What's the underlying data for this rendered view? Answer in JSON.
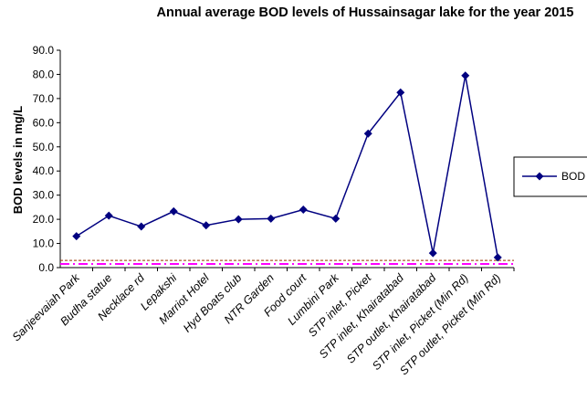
{
  "chart_data": {
    "type": "line",
    "title": "Annual average BOD levels of Hussainsagar lake for the year 2015",
    "y_label": "BOD levels in mg/L",
    "categories": [
      "Sanjeevaiah Park",
      "Budha statue",
      "Necklace rd",
      "Lepakshi",
      "Marriot Hotel",
      "Hyd Boats club",
      "NTR Garden",
      "Food court",
      "Lumbini Park",
      "STP inlet, Picket",
      "STP inlet, Khairatabad",
      "STP outlet, Khairatabad",
      "STP inlet, Picket (Min Rd)",
      "STP outlet, Picket (Min Rd)"
    ],
    "series": [
      {
        "name": "BOD",
        "color": "#000080",
        "values": [
          13,
          21.5,
          17,
          23.3,
          17.5,
          20,
          20.3,
          24,
          20.3,
          55.5,
          72.5,
          6,
          79.5,
          4.2
        ]
      }
    ],
    "reference_lines": [
      {
        "value": 3,
        "color": "#993300"
      },
      {
        "value": 1.5,
        "color": "#ff00ff"
      }
    ],
    "ylim": [
      0,
      90
    ],
    "yticks": [
      {
        "value": 0,
        "label": "0.0"
      },
      {
        "value": 10,
        "label": "10.0"
      },
      {
        "value": 20,
        "label": "20.0"
      },
      {
        "value": 30,
        "label": "30.0"
      },
      {
        "value": 40,
        "label": "40.0"
      },
      {
        "value": 50,
        "label": "50.0"
      },
      {
        "value": 60,
        "label": "60.0"
      },
      {
        "value": 70,
        "label": "70.0"
      },
      {
        "value": 80,
        "label": "80.0"
      },
      {
        "value": 90,
        "label": "90.0"
      }
    ],
    "legend": "right"
  }
}
